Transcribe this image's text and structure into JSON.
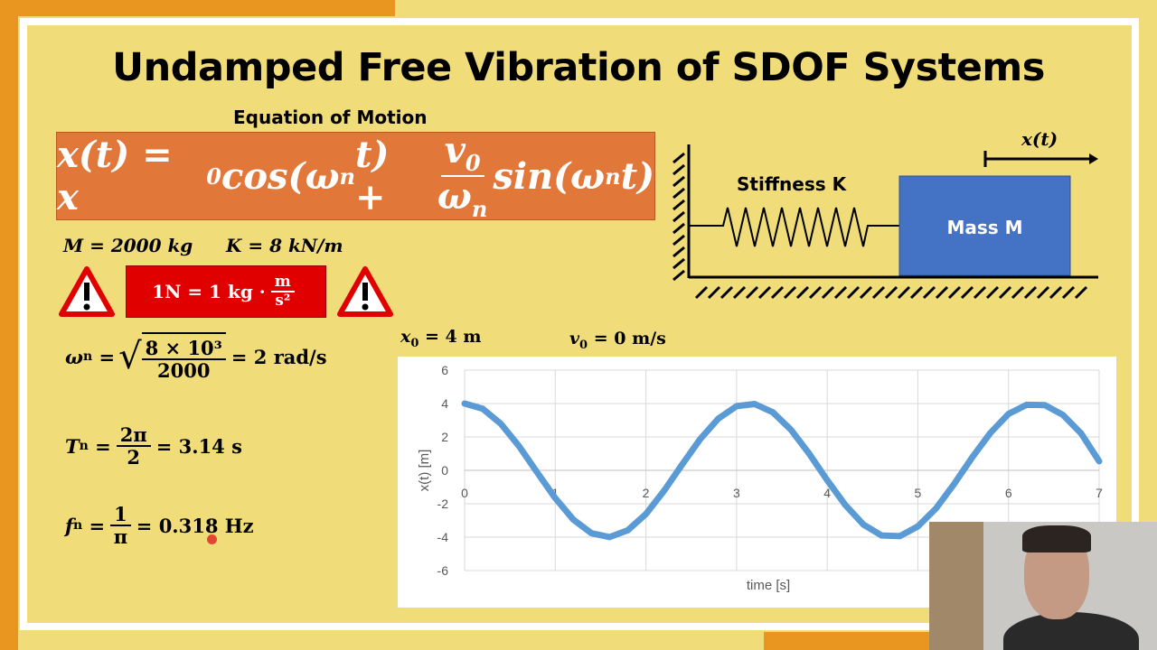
{
  "slide": {
    "title": "Undamped Free Vibration of SDOF Systems",
    "eom_heading": "Equation of Motion",
    "eom": {
      "lhs": "x(t) = x",
      "x0_sub": "0",
      "cos": "cos(ω",
      "n1": "n",
      "t1": "t) +",
      "num": "v",
      "num_sub": "0",
      "den": "ω",
      "den_sub": "n",
      "sin": "sin(ω",
      "n2": "n",
      "t2": "t)"
    },
    "params": {
      "mass": "M = 2000 kg",
      "stiffness": "K = 8 kN/m"
    },
    "unit_note": {
      "lhs": "1N = 1 kg ·",
      "num": "m",
      "den": "s²"
    },
    "omega": {
      "lhs": "ω",
      "sub": "n",
      "eq": "=",
      "num": "8 × 10³",
      "den": "2000",
      "rhs": "= 2 rad/s"
    },
    "period": {
      "lhs": "T",
      "sub": "n",
      "eq": "=",
      "num": "2π",
      "den": "2",
      "rhs": "= 3.14 s"
    },
    "freq": {
      "lhs": "f",
      "sub": "n",
      "eq": "=",
      "num": "1",
      "den": "π",
      "rhs": "= 0.318 Hz"
    },
    "initial": {
      "x0": "x",
      "x0_sub": "0",
      "x0_val": "= 4 m",
      "v0": "v",
      "v0_sub": "0",
      "v0_val": "= 0 m/s"
    },
    "diagram": {
      "displacement_label": "x(t)",
      "spring_label": "Stiffness K",
      "mass_label": "Mass M",
      "mass_color": "#4472c4"
    },
    "warning_icon": "warning-triangle-icon"
  },
  "chart_data": {
    "type": "line",
    "xlabel": "time [s]",
    "ylabel": "x(t) [m]",
    "xlim": [
      0,
      7
    ],
    "ylim": [
      -6,
      6
    ],
    "xticks": [
      "0",
      "1",
      "2",
      "3",
      "4",
      "5",
      "6",
      "7"
    ],
    "yticks": [
      "6",
      "4",
      "2",
      "0",
      "-2",
      "-4",
      "-6"
    ],
    "grid": true,
    "line_color": "#5b9bd5",
    "x": [
      0,
      0.2,
      0.4,
      0.6,
      0.8,
      1.0,
      1.2,
      1.4,
      1.6,
      1.8,
      2.0,
      2.2,
      2.4,
      2.6,
      2.8,
      3.0,
      3.2,
      3.4,
      3.6,
      3.8,
      4.0,
      4.2,
      4.4,
      4.6,
      4.8,
      5.0,
      5.2,
      5.4,
      5.6,
      5.8,
      6.0,
      6.2,
      6.4,
      6.6,
      6.8,
      7.0
    ],
    "y": [
      4,
      3.684,
      2.787,
      1.449,
      -0.117,
      -1.665,
      -2.949,
      -3.769,
      -3.993,
      -3.587,
      -2.615,
      -1.229,
      0.35,
      1.874,
      3.102,
      3.841,
      3.973,
      3.478,
      2.434,
      1.005,
      -0.582,
      -2.077,
      -3.247,
      -3.899,
      -3.939,
      -3.356,
      -2.279,
      -0.823,
      0.777,
      2.244,
      3.376,
      3.927,
      3.91,
      3.32,
      2.22,
      0.547
    ]
  }
}
